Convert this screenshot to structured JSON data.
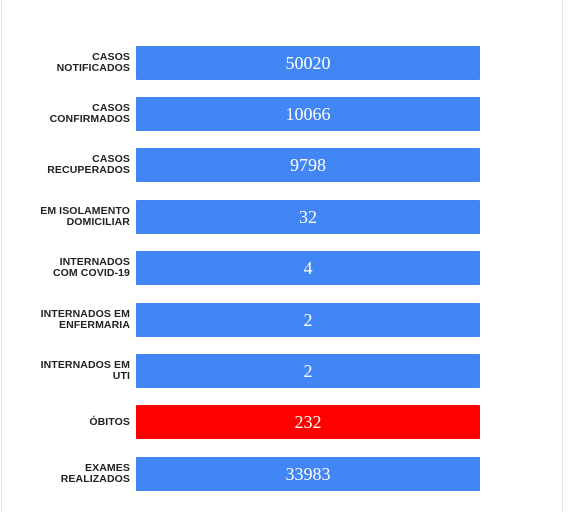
{
  "colors": {
    "bar_default": "#4285f4",
    "bar_alert": "#ff0000"
  },
  "rows": [
    {
      "label": "CASOS\nNOTIFICADOS",
      "value": "50020",
      "color": "#4285f4"
    },
    {
      "label": "CASOS\nCONFIRMADOS",
      "value": "10066",
      "color": "#4285f4"
    },
    {
      "label": "CASOS\nRECUPERADOS",
      "value": "9798",
      "color": "#4285f4"
    },
    {
      "label": "EM ISOLAMENTO\nDOMICILIAR",
      "value": "32",
      "color": "#4285f4"
    },
    {
      "label": "INTERNADOS\nCOM COVID-19",
      "value": "4",
      "color": "#4285f4"
    },
    {
      "label": "INTERNADOS EM\nENFERMARIA",
      "value": "2",
      "color": "#4285f4"
    },
    {
      "label": "INTERNADOS EM\nUTI",
      "value": "2",
      "color": "#4285f4"
    },
    {
      "label": "ÓBITOS",
      "value": "232",
      "color": "#ff0000"
    },
    {
      "label": "EXAMES\nREALIZADOS",
      "value": "33983",
      "color": "#4285f4"
    }
  ]
}
